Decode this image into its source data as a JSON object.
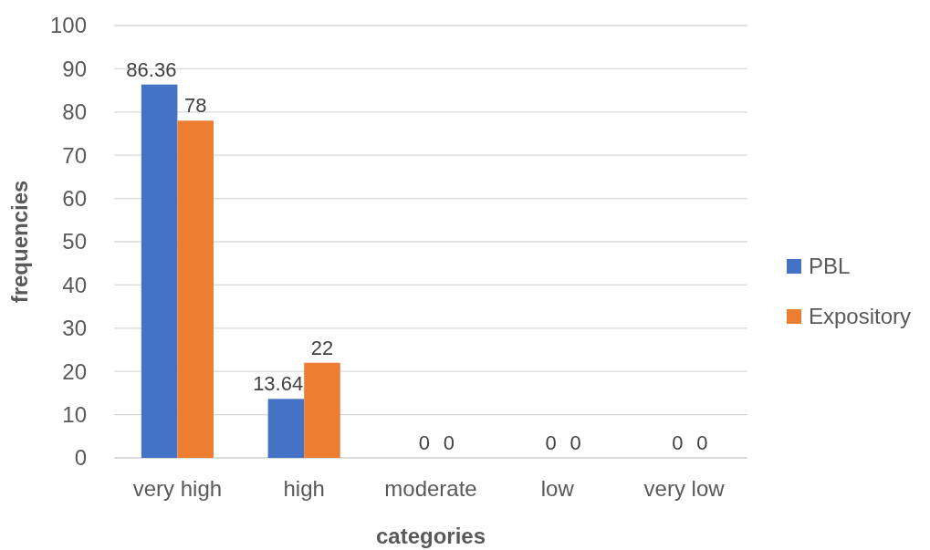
{
  "chart_data": {
    "type": "bar",
    "xlabel": "categories",
    "ylabel": "frequencies",
    "categories": [
      "very high",
      "high",
      "moderate",
      "low",
      "very low"
    ],
    "series": [
      {
        "name": "PBL",
        "color": "#4472c4",
        "values": [
          86.36,
          13.64,
          0,
          0,
          0
        ]
      },
      {
        "name": "Expository",
        "color": "#ed7d31",
        "values": [
          78,
          22,
          0,
          0,
          0
        ]
      }
    ],
    "ylim": [
      0,
      100
    ],
    "yticks": [
      0,
      10,
      20,
      30,
      40,
      50,
      60,
      70,
      80,
      90,
      100
    ],
    "grid": "y",
    "legend": "right",
    "data_labels": true
  }
}
